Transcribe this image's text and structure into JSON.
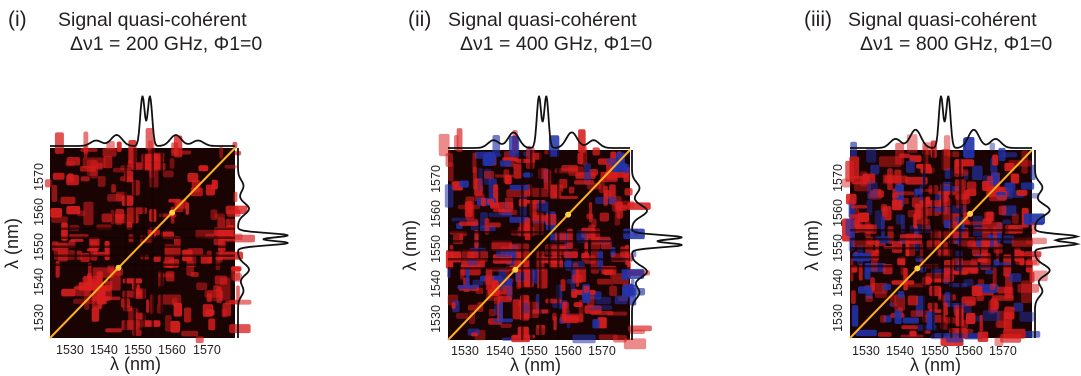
{
  "figure": {
    "panels": [
      {
        "tag": "(i)",
        "title_line1": "Signal quasi-cohérent",
        "title_line2": "Δν1 = 200 GHz, Φ1=0",
        "blue": false,
        "bright": "low"
      },
      {
        "tag": "(ii)",
        "title_line1": "Signal quasi-cohérent",
        "title_line2": "Δν1 = 400 GHz, Φ1=0",
        "blue": true,
        "bright": "mid"
      },
      {
        "tag": "(iii)",
        "title_line1": "Signal quasi-cohérent",
        "title_line2": "Δν1 = 800 GHz, Φ1=0",
        "blue": true,
        "bright": "high"
      }
    ],
    "x_ticks": [
      "1530",
      "1540",
      "1550",
      "1560",
      "1570"
    ],
    "y_ticks": [
      "1530",
      "1540",
      "1550",
      "1560",
      "1570"
    ],
    "xlabel": "λ (nm)",
    "ylabel": "λ (nm)",
    "colors": {
      "background": "#1a0303",
      "red": "#d81e1e",
      "blue": "#2233aa",
      "diagonal": "#ffb020",
      "trace": "#111111"
    }
  }
}
